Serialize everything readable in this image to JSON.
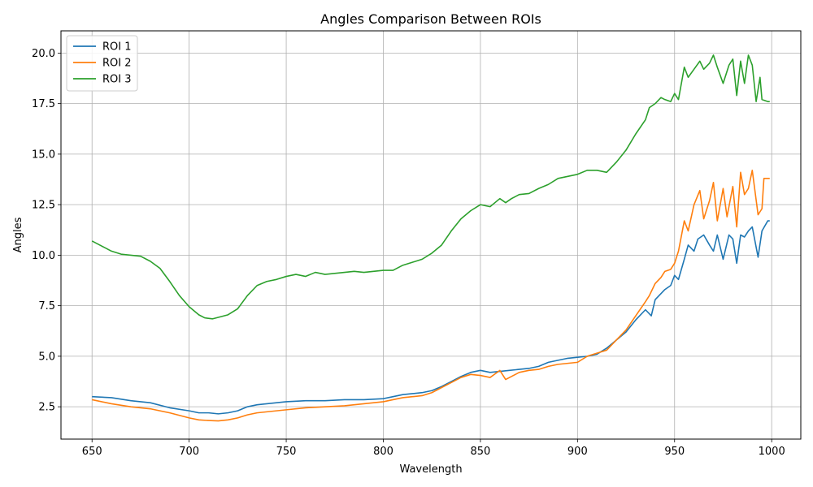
{
  "chart_data": {
    "type": "line",
    "title": "Angles Comparison Between ROIs",
    "xlabel": "Wavelength",
    "ylabel": "Angles",
    "xlim": [
      634,
      1015
    ],
    "ylim": [
      0.9,
      21.1
    ],
    "xticks": [
      650,
      700,
      750,
      800,
      850,
      900,
      950,
      1000
    ],
    "yticks": [
      2.5,
      5.0,
      7.5,
      10.0,
      12.5,
      15.0,
      17.5,
      20.0
    ],
    "xtick_labels": [
      "650",
      "700",
      "750",
      "800",
      "850",
      "900",
      "950",
      "1000"
    ],
    "ytick_labels": [
      "2.5",
      "5.0",
      "7.5",
      "10.0",
      "12.5",
      "15.0",
      "17.5",
      "20.0"
    ],
    "grid": true,
    "legend_position": "top-left",
    "series": [
      {
        "name": "ROI 1",
        "color": "#1f77b4",
        "points": [
          [
            650,
            3.0
          ],
          [
            660,
            2.95
          ],
          [
            670,
            2.8
          ],
          [
            680,
            2.7
          ],
          [
            690,
            2.45
          ],
          [
            700,
            2.3
          ],
          [
            705,
            2.2
          ],
          [
            710,
            2.2
          ],
          [
            715,
            2.15
          ],
          [
            720,
            2.2
          ],
          [
            725,
            2.3
          ],
          [
            730,
            2.5
          ],
          [
            735,
            2.6
          ],
          [
            740,
            2.65
          ],
          [
            745,
            2.7
          ],
          [
            750,
            2.75
          ],
          [
            760,
            2.8
          ],
          [
            770,
            2.8
          ],
          [
            780,
            2.85
          ],
          [
            790,
            2.85
          ],
          [
            800,
            2.9
          ],
          [
            805,
            3.0
          ],
          [
            810,
            3.1
          ],
          [
            815,
            3.15
          ],
          [
            820,
            3.2
          ],
          [
            825,
            3.3
          ],
          [
            830,
            3.5
          ],
          [
            835,
            3.75
          ],
          [
            840,
            4.0
          ],
          [
            845,
            4.2
          ],
          [
            850,
            4.3
          ],
          [
            855,
            4.2
          ],
          [
            860,
            4.25
          ],
          [
            865,
            4.3
          ],
          [
            870,
            4.35
          ],
          [
            875,
            4.4
          ],
          [
            880,
            4.5
          ],
          [
            885,
            4.7
          ],
          [
            890,
            4.8
          ],
          [
            895,
            4.9
          ],
          [
            900,
            4.95
          ],
          [
            905,
            5.0
          ],
          [
            910,
            5.1
          ],
          [
            915,
            5.4
          ],
          [
            920,
            5.8
          ],
          [
            925,
            6.2
          ],
          [
            930,
            6.8
          ],
          [
            935,
            7.3
          ],
          [
            938,
            7.0
          ],
          [
            940,
            7.8
          ],
          [
            943,
            8.1
          ],
          [
            945,
            8.3
          ],
          [
            948,
            8.5
          ],
          [
            950,
            9.0
          ],
          [
            952,
            8.8
          ],
          [
            955,
            9.8
          ],
          [
            957,
            10.5
          ],
          [
            960,
            10.2
          ],
          [
            962,
            10.8
          ],
          [
            965,
            11.0
          ],
          [
            968,
            10.5
          ],
          [
            970,
            10.2
          ],
          [
            972,
            11.0
          ],
          [
            975,
            9.8
          ],
          [
            978,
            11.0
          ],
          [
            980,
            10.8
          ],
          [
            982,
            9.6
          ],
          [
            984,
            11.0
          ],
          [
            986,
            10.9
          ],
          [
            988,
            11.2
          ],
          [
            990,
            11.4
          ],
          [
            993,
            9.9
          ],
          [
            995,
            11.2
          ],
          [
            998,
            11.7
          ],
          [
            999,
            11.7
          ]
        ]
      },
      {
        "name": "ROI 2",
        "color": "#ff7f0e",
        "points": [
          [
            650,
            2.85
          ],
          [
            660,
            2.65
          ],
          [
            670,
            2.5
          ],
          [
            680,
            2.4
          ],
          [
            690,
            2.2
          ],
          [
            700,
            1.95
          ],
          [
            705,
            1.85
          ],
          [
            710,
            1.82
          ],
          [
            715,
            1.8
          ],
          [
            720,
            1.85
          ],
          [
            725,
            1.95
          ],
          [
            730,
            2.1
          ],
          [
            735,
            2.2
          ],
          [
            740,
            2.25
          ],
          [
            745,
            2.3
          ],
          [
            750,
            2.35
          ],
          [
            760,
            2.45
          ],
          [
            770,
            2.5
          ],
          [
            780,
            2.55
          ],
          [
            790,
            2.65
          ],
          [
            800,
            2.75
          ],
          [
            805,
            2.85
          ],
          [
            810,
            2.95
          ],
          [
            815,
            3.0
          ],
          [
            820,
            3.05
          ],
          [
            825,
            3.2
          ],
          [
            830,
            3.45
          ],
          [
            835,
            3.7
          ],
          [
            840,
            3.95
          ],
          [
            845,
            4.1
          ],
          [
            850,
            4.05
          ],
          [
            855,
            3.95
          ],
          [
            860,
            4.3
          ],
          [
            863,
            3.85
          ],
          [
            866,
            4.0
          ],
          [
            870,
            4.2
          ],
          [
            875,
            4.3
          ],
          [
            880,
            4.35
          ],
          [
            885,
            4.5
          ],
          [
            890,
            4.6
          ],
          [
            895,
            4.65
          ],
          [
            900,
            4.7
          ],
          [
            905,
            5.0
          ],
          [
            910,
            5.15
          ],
          [
            915,
            5.3
          ],
          [
            920,
            5.8
          ],
          [
            925,
            6.3
          ],
          [
            930,
            7.0
          ],
          [
            935,
            7.7
          ],
          [
            937,
            8.0
          ],
          [
            940,
            8.6
          ],
          [
            943,
            8.9
          ],
          [
            945,
            9.2
          ],
          [
            948,
            9.3
          ],
          [
            950,
            9.6
          ],
          [
            952,
            10.2
          ],
          [
            955,
            11.7
          ],
          [
            957,
            11.2
          ],
          [
            960,
            12.5
          ],
          [
            963,
            13.2
          ],
          [
            965,
            11.8
          ],
          [
            968,
            12.7
          ],
          [
            970,
            13.6
          ],
          [
            972,
            11.7
          ],
          [
            975,
            13.3
          ],
          [
            977,
            11.9
          ],
          [
            980,
            13.4
          ],
          [
            982,
            11.4
          ],
          [
            984,
            14.1
          ],
          [
            986,
            13.0
          ],
          [
            988,
            13.3
          ],
          [
            990,
            14.2
          ],
          [
            993,
            12.0
          ],
          [
            995,
            12.3
          ],
          [
            996,
            13.8
          ],
          [
            998,
            13.8
          ],
          [
            999,
            13.8
          ]
        ]
      },
      {
        "name": "ROI 3",
        "color": "#2ca02c",
        "points": [
          [
            650,
            10.7
          ],
          [
            655,
            10.45
          ],
          [
            660,
            10.2
          ],
          [
            665,
            10.05
          ],
          [
            670,
            10.0
          ],
          [
            675,
            9.95
          ],
          [
            680,
            9.7
          ],
          [
            685,
            9.35
          ],
          [
            690,
            8.7
          ],
          [
            695,
            8.0
          ],
          [
            700,
            7.45
          ],
          [
            705,
            7.05
          ],
          [
            708,
            6.9
          ],
          [
            712,
            6.85
          ],
          [
            716,
            6.95
          ],
          [
            720,
            7.05
          ],
          [
            725,
            7.35
          ],
          [
            730,
            8.0
          ],
          [
            735,
            8.5
          ],
          [
            740,
            8.7
          ],
          [
            745,
            8.8
          ],
          [
            750,
            8.95
          ],
          [
            755,
            9.05
          ],
          [
            760,
            8.95
          ],
          [
            765,
            9.15
          ],
          [
            770,
            9.05
          ],
          [
            775,
            9.1
          ],
          [
            780,
            9.15
          ],
          [
            785,
            9.2
          ],
          [
            790,
            9.15
          ],
          [
            795,
            9.2
          ],
          [
            800,
            9.25
          ],
          [
            805,
            9.25
          ],
          [
            810,
            9.5
          ],
          [
            815,
            9.65
          ],
          [
            820,
            9.8
          ],
          [
            825,
            10.1
          ],
          [
            830,
            10.5
          ],
          [
            835,
            11.2
          ],
          [
            840,
            11.8
          ],
          [
            845,
            12.2
          ],
          [
            850,
            12.5
          ],
          [
            855,
            12.4
          ],
          [
            860,
            12.8
          ],
          [
            863,
            12.6
          ],
          [
            866,
            12.8
          ],
          [
            870,
            13.0
          ],
          [
            875,
            13.05
          ],
          [
            880,
            13.3
          ],
          [
            885,
            13.5
          ],
          [
            890,
            13.8
          ],
          [
            895,
            13.9
          ],
          [
            900,
            14.0
          ],
          [
            905,
            14.2
          ],
          [
            910,
            14.2
          ],
          [
            915,
            14.1
          ],
          [
            920,
            14.6
          ],
          [
            925,
            15.2
          ],
          [
            930,
            16.0
          ],
          [
            935,
            16.7
          ],
          [
            937,
            17.3
          ],
          [
            940,
            17.5
          ],
          [
            943,
            17.8
          ],
          [
            945,
            17.7
          ],
          [
            948,
            17.6
          ],
          [
            950,
            18.0
          ],
          [
            952,
            17.7
          ],
          [
            955,
            19.3
          ],
          [
            957,
            18.8
          ],
          [
            960,
            19.2
          ],
          [
            963,
            19.6
          ],
          [
            965,
            19.2
          ],
          [
            968,
            19.5
          ],
          [
            970,
            19.9
          ],
          [
            972,
            19.3
          ],
          [
            975,
            18.5
          ],
          [
            978,
            19.4
          ],
          [
            980,
            19.7
          ],
          [
            982,
            17.9
          ],
          [
            984,
            19.6
          ],
          [
            986,
            18.5
          ],
          [
            988,
            19.9
          ],
          [
            990,
            19.4
          ],
          [
            992,
            17.6
          ],
          [
            994,
            18.8
          ],
          [
            995,
            17.7
          ],
          [
            998,
            17.6
          ],
          [
            999,
            17.6
          ]
        ]
      }
    ]
  }
}
